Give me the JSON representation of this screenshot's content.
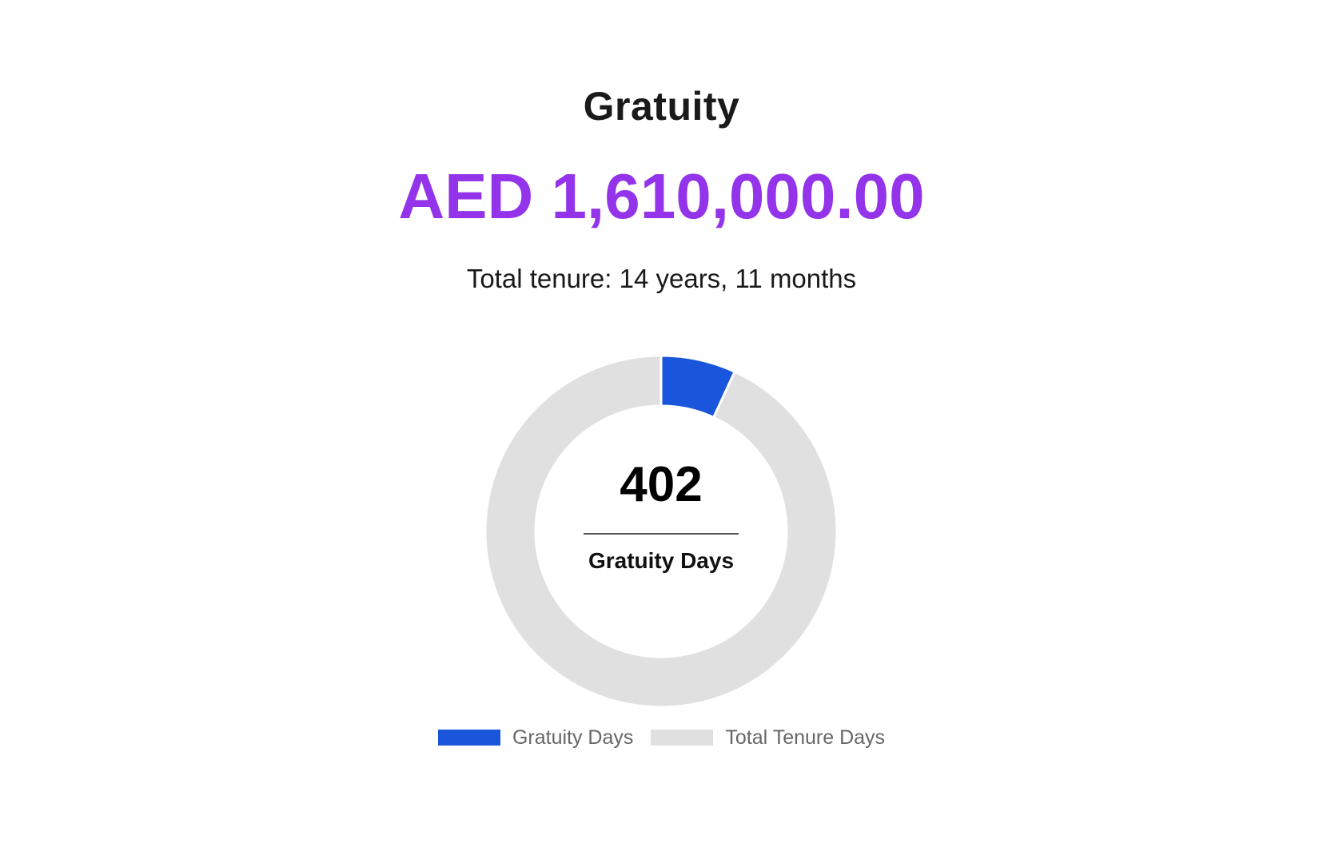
{
  "header": {
    "title": "Gratuity",
    "amount": "AED 1,610,000.00",
    "tenure": "Total tenure: 14 years, 11 months"
  },
  "center": {
    "value": "402",
    "label": "Gratuity Days"
  },
  "colors": {
    "accent": "#9333ea",
    "gratuity": "#1a56db",
    "tenure": "#e0e0e0"
  },
  "chart_data": {
    "type": "pie",
    "labels": [
      "Gratuity Days",
      "Total Tenure Days"
    ],
    "values": [
      402,
      5444
    ],
    "colors": [
      "#1a56db",
      "#e0e0e0"
    ],
    "legend": "bottom"
  }
}
